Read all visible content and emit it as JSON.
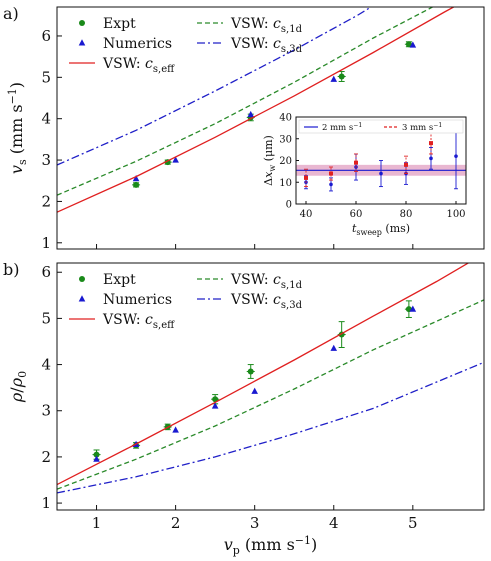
{
  "figure": {
    "panels": [
      {
        "id": "a",
        "panel_label": "a)",
        "ylabel_html": [
          "v",
          "s",
          " (mm s",
          "−1",
          ")"
        ],
        "xlabel_html": [],
        "ylim": [
          0.85,
          6.7
        ],
        "xlim": [
          0.5,
          5.9
        ],
        "yticks": [
          1,
          2,
          3,
          4,
          5,
          6
        ],
        "xticks": [],
        "legend_lines": [
          {
            "label": "Expt",
            "kind": "marker-circle",
            "color": "#1a8a1a",
            "col": 0,
            "row": 0
          },
          {
            "label": "Numerics",
            "kind": "marker-triangle",
            "color": "#1a1ad0",
            "col": 0,
            "row": 1
          },
          {
            "label": "VSW: ",
            "sym": "c",
            "sub": "s,eff",
            "kind": "line",
            "style": "solid",
            "color": "#e02020",
            "col": 0,
            "row": 2
          },
          {
            "label": "VSW: ",
            "sym": "c",
            "sub": "s,1d",
            "kind": "line",
            "style": "dashed",
            "color": "#2a8a2a",
            "col": 1,
            "row": 0
          },
          {
            "label": "VSW: ",
            "sym": "c",
            "sub": "s,3d",
            "kind": "line",
            "style": "dashdot",
            "color": "#2020c8",
            "col": 1,
            "row": 1
          }
        ],
        "chart_data": {
          "type": "scatter",
          "series": [
            {
              "name": "Expt",
              "marker": "circle",
              "color": "#1a8a1a",
              "points": [
                [
                  1.5,
                  2.4,
                  0.05
                ],
                [
                  1.9,
                  2.95,
                  0.05
                ],
                [
                  2.95,
                  4.03,
                  0.08
                ],
                [
                  4.1,
                  5.02,
                  0.12
                ],
                [
                  4.95,
                  5.8,
                  0.06
                ]
              ]
            },
            {
              "name": "Numerics",
              "marker": "triangle",
              "color": "#1a1ad0",
              "points": [
                [
                  1.5,
                  2.55
                ],
                [
                  2.0,
                  3.0
                ],
                [
                  2.95,
                  4.1
                ],
                [
                  4.0,
                  4.95
                ],
                [
                  5.0,
                  5.78
                ]
              ]
            },
            {
              "name": "VSW: c_s,eff",
              "line": "solid",
              "color": "#e02020",
              "points": [
                [
                  0.5,
                  1.74
                ],
                [
                  1.5,
                  2.6
                ],
                [
                  2.5,
                  3.55
                ],
                [
                  3.5,
                  4.55
                ],
                [
                  4.5,
                  5.6
                ],
                [
                  5.4,
                  6.58
                ],
                [
                  5.9,
                  7.1
                ]
              ]
            },
            {
              "name": "VSW: c_s,1d",
              "line": "dashed",
              "color": "#2a8a2a",
              "points": [
                [
                  0.5,
                  2.15
                ],
                [
                  1.5,
                  2.97
                ],
                [
                  2.5,
                  3.88
                ],
                [
                  3.5,
                  4.88
                ],
                [
                  4.5,
                  5.95
                ],
                [
                  5.3,
                  6.75
                ]
              ]
            },
            {
              "name": "VSW: c_s,3d",
              "line": "dashdot",
              "color": "#2020c8",
              "points": [
                [
                  0.5,
                  2.88
                ],
                [
                  1.5,
                  3.72
                ],
                [
                  2.5,
                  4.67
                ],
                [
                  3.5,
                  5.66
                ],
                [
                  4.3,
                  6.5
                ],
                [
                  4.6,
                  6.85
                ]
              ]
            }
          ]
        },
        "inset": {
          "ylabel_html": [
            "Δ",
            "x",
            "w",
            " (μm)"
          ],
          "xlabel_html": [
            "t",
            "sweep",
            " (ms)"
          ],
          "xlim": [
            36,
            104
          ],
          "ylim": [
            0,
            40
          ],
          "xticks": [
            40,
            60,
            80,
            100
          ],
          "yticks": [
            0,
            10,
            20,
            30,
            40
          ],
          "band": {
            "center": 15.5,
            "half_width": 2.5,
            "color": "#c0307a"
          },
          "mean_line": {
            "value": 15.5,
            "color": "#1a1ad0"
          },
          "legend": [
            {
              "label": "2 mm s",
              "sup": "−1",
              "color": "#1a1ad0",
              "style": "solid"
            },
            {
              "label": "3 mm s",
              "sup": "−1",
              "color": "#e02020",
              "style": "dashed"
            }
          ],
          "chart_data": {
            "type": "scatter",
            "series": [
              {
                "name": "2 mm s^-1",
                "color": "#1a1ad0",
                "points": [
                  [
                    40,
                    10,
                    3
                  ],
                  [
                    50,
                    9,
                    3
                  ],
                  [
                    60,
                    17,
                    6
                  ],
                  [
                    70,
                    14,
                    6
                  ],
                  [
                    80,
                    14,
                    5
                  ],
                  [
                    90,
                    21,
                    5
                  ],
                  [
                    100,
                    22,
                    15
                  ]
                ]
              },
              {
                "name": "3 mm s^-1",
                "color": "#e02020",
                "points": [
                  [
                    40,
                    12,
                    4
                  ],
                  [
                    50,
                    14,
                    3
                  ],
                  [
                    60,
                    19,
                    4
                  ],
                  [
                    80,
                    18,
                    4
                  ],
                  [
                    90,
                    28,
                    5
                  ]
                ]
              }
            ]
          }
        }
      },
      {
        "id": "b",
        "panel_label": "b)",
        "ylabel_html": [
          "ρ",
          "/",
          "ρ",
          "0",
          ""
        ],
        "xlabel_html": [
          "v",
          "p",
          " (mm s",
          "−1",
          ")"
        ],
        "ylim": [
          0.85,
          6.2
        ],
        "xlim": [
          0.5,
          5.9
        ],
        "yticks": [
          1,
          2,
          3,
          4,
          5,
          6
        ],
        "xticks": [
          1,
          2,
          3,
          4,
          5
        ],
        "legend_lines": [
          {
            "label": "Expt",
            "kind": "marker-circle",
            "color": "#1a8a1a",
            "col": 0,
            "row": 0
          },
          {
            "label": "Numerics",
            "kind": "marker-triangle",
            "color": "#1a1ad0",
            "col": 0,
            "row": 1
          },
          {
            "label": "VSW: ",
            "sym": "c",
            "sub": "s,eff",
            "kind": "line",
            "style": "solid",
            "color": "#e02020",
            "col": 0,
            "row": 2
          },
          {
            "label": "VSW: ",
            "sym": "c",
            "sub": "s,1d",
            "kind": "line",
            "style": "dashed",
            "color": "#2a8a2a",
            "col": 1,
            "row": 0
          },
          {
            "label": "VSW: ",
            "sym": "c",
            "sub": "s,3d",
            "kind": "line",
            "style": "dashdot",
            "color": "#2020c8",
            "col": 1,
            "row": 1
          }
        ],
        "chart_data": {
          "type": "scatter",
          "series": [
            {
              "name": "Expt",
              "marker": "circle",
              "color": "#1a8a1a",
              "points": [
                [
                  1.0,
                  2.05,
                  0.1
                ],
                [
                  1.5,
                  2.25,
                  0.06
                ],
                [
                  1.9,
                  2.65,
                  0.06
                ],
                [
                  2.5,
                  3.25,
                  0.1
                ],
                [
                  2.95,
                  3.85,
                  0.15
                ],
                [
                  4.1,
                  4.65,
                  0.28
                ],
                [
                  4.95,
                  5.2,
                  0.18
                ]
              ]
            },
            {
              "name": "Numerics",
              "marker": "triangle",
              "color": "#1a1ad0",
              "points": [
                [
                  1.0,
                  1.95
                ],
                [
                  1.5,
                  2.27
                ],
                [
                  2.0,
                  2.58
                ],
                [
                  2.5,
                  3.1
                ],
                [
                  3.0,
                  3.42
                ],
                [
                  4.0,
                  4.35
                ],
                [
                  5.0,
                  5.2
                ]
              ]
            },
            {
              "name": "VSW: c_s,eff",
              "line": "solid",
              "color": "#e02020",
              "points": [
                [
                  0.5,
                  1.4
                ],
                [
                  1.5,
                  2.28
                ],
                [
                  2.5,
                  3.18
                ],
                [
                  3.5,
                  4.1
                ],
                [
                  4.5,
                  5.05
                ],
                [
                  5.3,
                  5.8
                ],
                [
                  5.9,
                  6.4
                ]
              ]
            },
            {
              "name": "VSW: c_s,1d",
              "line": "dashed",
              "color": "#2a8a2a",
              "points": [
                [
                  0.5,
                  1.3
                ],
                [
                  1.5,
                  1.95
                ],
                [
                  2.5,
                  2.67
                ],
                [
                  3.5,
                  3.47
                ],
                [
                  4.5,
                  4.32
                ],
                [
                  5.9,
                  5.4
                ]
              ]
            },
            {
              "name": "VSW: c_s,3d",
              "line": "dashdot",
              "color": "#2020c8",
              "points": [
                [
                  0.5,
                  1.22
                ],
                [
                  1.5,
                  1.57
                ],
                [
                  2.5,
                  2.0
                ],
                [
                  3.5,
                  2.5
                ],
                [
                  4.5,
                  3.05
                ],
                [
                  5.9,
                  4.05
                ]
              ]
            }
          ]
        }
      }
    ]
  }
}
